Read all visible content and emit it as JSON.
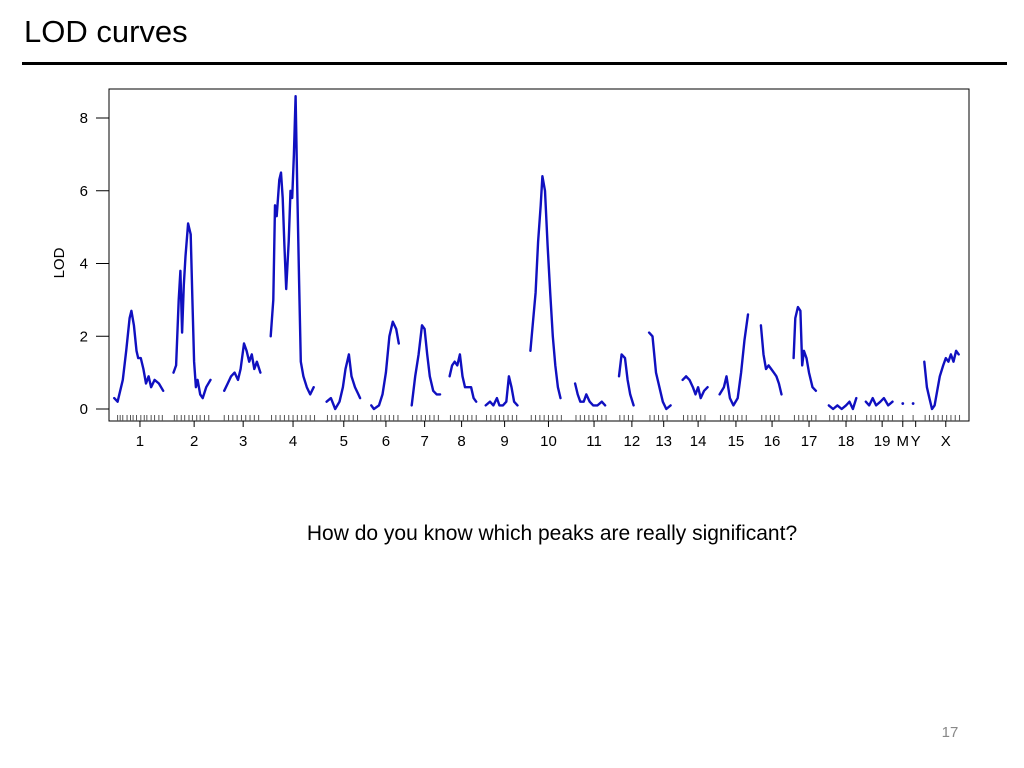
{
  "slide": {
    "title": "LOD curves",
    "question": "How do you know which peaks are really significant?",
    "page_number": "17"
  },
  "colors": {
    "curve": "#1010c0",
    "axis": "#000000"
  },
  "chart_data": {
    "type": "line",
    "title": "",
    "xlabel": "",
    "ylabel": "LOD",
    "ylim": [
      0,
      8.5
    ],
    "xlim": [
      0,
      100
    ],
    "y_ticks": [
      0,
      2,
      4,
      6,
      8
    ],
    "x_tick_labels": [
      {
        "label": "1",
        "x": 3.6
      },
      {
        "label": "2",
        "x": 9.9
      },
      {
        "label": "3",
        "x": 15.6
      },
      {
        "label": "4",
        "x": 21.4
      },
      {
        "label": "5",
        "x": 27.3
      },
      {
        "label": "6",
        "x": 32.2
      },
      {
        "label": "7",
        "x": 36.7
      },
      {
        "label": "8",
        "x": 41.0
      },
      {
        "label": "9",
        "x": 46.0
      },
      {
        "label": "10",
        "x": 51.1
      },
      {
        "label": "11",
        "x": 56.4
      },
      {
        "label": "12",
        "x": 60.8
      },
      {
        "label": "13",
        "x": 64.5
      },
      {
        "label": "14",
        "x": 68.5
      },
      {
        "label": "15",
        "x": 72.9
      },
      {
        "label": "16",
        "x": 77.1
      },
      {
        "label": "17",
        "x": 81.4
      },
      {
        "label": "18",
        "x": 85.7
      },
      {
        "label": "19",
        "x": 89.9
      },
      {
        "label": "M",
        "x": 92.3
      },
      {
        "label": "Y",
        "x": 93.8
      },
      {
        "label": "X",
        "x": 97.3
      }
    ],
    "series": [
      {
        "chromosome": "1",
        "points": [
          [
            0.6,
            0.3
          ],
          [
            1.0,
            0.2
          ],
          [
            1.6,
            0.8
          ],
          [
            2.0,
            1.6
          ],
          [
            2.4,
            2.5
          ],
          [
            2.6,
            2.7
          ],
          [
            2.9,
            2.3
          ],
          [
            3.2,
            1.6
          ],
          [
            3.4,
            1.4
          ],
          [
            3.7,
            1.4
          ],
          [
            4.0,
            1.1
          ],
          [
            4.3,
            0.7
          ],
          [
            4.6,
            0.9
          ],
          [
            4.9,
            0.6
          ],
          [
            5.3,
            0.8
          ],
          [
            5.8,
            0.7
          ],
          [
            6.3,
            0.5
          ]
        ]
      },
      {
        "chromosome": "2",
        "points": [
          [
            7.5,
            1.0
          ],
          [
            7.8,
            1.2
          ],
          [
            8.1,
            3.0
          ],
          [
            8.3,
            3.8
          ],
          [
            8.5,
            2.1
          ],
          [
            8.7,
            3.4
          ],
          [
            8.9,
            4.2
          ],
          [
            9.2,
            5.1
          ],
          [
            9.5,
            4.8
          ],
          [
            9.7,
            3.0
          ],
          [
            9.9,
            1.3
          ],
          [
            10.1,
            0.6
          ],
          [
            10.3,
            0.8
          ],
          [
            10.6,
            0.4
          ],
          [
            10.9,
            0.3
          ],
          [
            11.3,
            0.6
          ],
          [
            11.8,
            0.8
          ]
        ]
      },
      {
        "chromosome": "3",
        "points": [
          [
            13.4,
            0.5
          ],
          [
            13.8,
            0.7
          ],
          [
            14.2,
            0.9
          ],
          [
            14.6,
            1.0
          ],
          [
            15.0,
            0.8
          ],
          [
            15.3,
            1.1
          ],
          [
            15.7,
            1.8
          ],
          [
            16.0,
            1.6
          ],
          [
            16.3,
            1.3
          ],
          [
            16.6,
            1.5
          ],
          [
            16.9,
            1.1
          ],
          [
            17.2,
            1.3
          ],
          [
            17.6,
            1.0
          ]
        ]
      },
      {
        "chromosome": "4",
        "points": [
          [
            18.8,
            2.0
          ],
          [
            19.1,
            3.0
          ],
          [
            19.3,
            5.6
          ],
          [
            19.5,
            5.3
          ],
          [
            19.8,
            6.3
          ],
          [
            20.0,
            6.5
          ],
          [
            20.2,
            5.8
          ],
          [
            20.4,
            4.5
          ],
          [
            20.6,
            3.3
          ],
          [
            20.9,
            4.6
          ],
          [
            21.1,
            6.0
          ],
          [
            21.3,
            5.8
          ],
          [
            21.5,
            7.0
          ],
          [
            21.7,
            8.6
          ],
          [
            21.9,
            6.0
          ],
          [
            22.1,
            3.5
          ],
          [
            22.3,
            1.3
          ],
          [
            22.6,
            0.9
          ],
          [
            23.0,
            0.6
          ],
          [
            23.4,
            0.4
          ],
          [
            23.8,
            0.6
          ]
        ]
      },
      {
        "chromosome": "5",
        "points": [
          [
            25.3,
            0.2
          ],
          [
            25.8,
            0.3
          ],
          [
            26.3,
            0.0
          ],
          [
            26.8,
            0.2
          ],
          [
            27.2,
            0.6
          ],
          [
            27.5,
            1.1
          ],
          [
            27.9,
            1.5
          ],
          [
            28.2,
            0.9
          ],
          [
            28.6,
            0.6
          ],
          [
            29.0,
            0.4
          ],
          [
            29.2,
            0.3
          ]
        ]
      },
      {
        "chromosome": "6",
        "points": [
          [
            30.5,
            0.1
          ],
          [
            30.8,
            0.0
          ],
          [
            31.4,
            0.1
          ],
          [
            31.8,
            0.4
          ],
          [
            32.2,
            1.0
          ],
          [
            32.6,
            2.0
          ],
          [
            33.0,
            2.4
          ],
          [
            33.4,
            2.2
          ],
          [
            33.7,
            1.8
          ]
        ]
      },
      {
        "chromosome": "7",
        "points": [
          [
            35.2,
            0.1
          ],
          [
            35.6,
            0.9
          ],
          [
            36.0,
            1.5
          ],
          [
            36.4,
            2.3
          ],
          [
            36.7,
            2.2
          ],
          [
            37.0,
            1.5
          ],
          [
            37.3,
            0.9
          ],
          [
            37.7,
            0.5
          ],
          [
            38.1,
            0.4
          ],
          [
            38.5,
            0.4
          ]
        ]
      },
      {
        "chromosome": "8",
        "points": [
          [
            39.6,
            0.9
          ],
          [
            39.9,
            1.2
          ],
          [
            40.2,
            1.3
          ],
          [
            40.5,
            1.2
          ],
          [
            40.8,
            1.5
          ],
          [
            41.1,
            0.9
          ],
          [
            41.4,
            0.6
          ],
          [
            41.8,
            0.6
          ],
          [
            42.1,
            0.6
          ],
          [
            42.4,
            0.3
          ],
          [
            42.7,
            0.2
          ]
        ]
      },
      {
        "chromosome": "9",
        "points": [
          [
            43.8,
            0.1
          ],
          [
            44.3,
            0.2
          ],
          [
            44.7,
            0.1
          ],
          [
            45.1,
            0.3
          ],
          [
            45.4,
            0.1
          ],
          [
            45.8,
            0.1
          ],
          [
            46.2,
            0.2
          ],
          [
            46.5,
            0.9
          ],
          [
            46.8,
            0.6
          ],
          [
            47.1,
            0.2
          ],
          [
            47.5,
            0.1
          ]
        ]
      },
      {
        "chromosome": "10",
        "points": [
          [
            49.0,
            1.6
          ],
          [
            49.3,
            2.4
          ],
          [
            49.6,
            3.2
          ],
          [
            49.9,
            4.6
          ],
          [
            50.2,
            5.6
          ],
          [
            50.4,
            6.4
          ],
          [
            50.7,
            6.0
          ],
          [
            51.0,
            4.5
          ],
          [
            51.3,
            3.2
          ],
          [
            51.6,
            2.0
          ],
          [
            51.9,
            1.2
          ],
          [
            52.2,
            0.6
          ],
          [
            52.5,
            0.3
          ]
        ]
      },
      {
        "chromosome": "11",
        "points": [
          [
            54.2,
            0.7
          ],
          [
            54.5,
            0.4
          ],
          [
            54.8,
            0.2
          ],
          [
            55.2,
            0.2
          ],
          [
            55.5,
            0.4
          ],
          [
            55.9,
            0.2
          ],
          [
            56.3,
            0.1
          ],
          [
            56.8,
            0.1
          ],
          [
            57.3,
            0.2
          ],
          [
            57.7,
            0.1
          ]
        ]
      },
      {
        "chromosome": "12",
        "points": [
          [
            59.3,
            0.9
          ],
          [
            59.6,
            1.5
          ],
          [
            60.0,
            1.4
          ],
          [
            60.3,
            0.8
          ],
          [
            60.6,
            0.4
          ],
          [
            61.0,
            0.1
          ]
        ]
      },
      {
        "chromosome": "13",
        "points": [
          [
            62.8,
            2.1
          ],
          [
            63.2,
            2.0
          ],
          [
            63.6,
            1.0
          ],
          [
            64.0,
            0.6
          ],
          [
            64.4,
            0.2
          ],
          [
            64.8,
            0.0
          ],
          [
            65.3,
            0.1
          ]
        ]
      },
      {
        "chromosome": "14",
        "points": [
          [
            66.7,
            0.8
          ],
          [
            67.1,
            0.9
          ],
          [
            67.5,
            0.8
          ],
          [
            67.9,
            0.6
          ],
          [
            68.2,
            0.4
          ],
          [
            68.5,
            0.6
          ],
          [
            68.8,
            0.3
          ],
          [
            69.2,
            0.5
          ],
          [
            69.6,
            0.6
          ]
        ]
      },
      {
        "chromosome": "15",
        "points": [
          [
            71.0,
            0.4
          ],
          [
            71.5,
            0.6
          ],
          [
            71.8,
            0.9
          ],
          [
            72.2,
            0.3
          ],
          [
            72.6,
            0.1
          ],
          [
            73.1,
            0.3
          ],
          [
            73.5,
            1.0
          ],
          [
            73.9,
            1.9
          ],
          [
            74.3,
            2.6
          ]
        ]
      },
      {
        "chromosome": "16",
        "points": [
          [
            75.8,
            2.3
          ],
          [
            76.1,
            1.5
          ],
          [
            76.4,
            1.1
          ],
          [
            76.7,
            1.2
          ],
          [
            77.0,
            1.1
          ],
          [
            77.3,
            1.0
          ],
          [
            77.6,
            0.9
          ],
          [
            77.9,
            0.7
          ],
          [
            78.2,
            0.4
          ]
        ]
      },
      {
        "chromosome": "17",
        "points": [
          [
            79.6,
            1.4
          ],
          [
            79.8,
            2.5
          ],
          [
            80.1,
            2.8
          ],
          [
            80.4,
            2.7
          ],
          [
            80.6,
            1.2
          ],
          [
            80.8,
            1.6
          ],
          [
            81.1,
            1.4
          ],
          [
            81.4,
            1.0
          ],
          [
            81.8,
            0.6
          ],
          [
            82.2,
            0.5
          ]
        ]
      },
      {
        "chromosome": "18",
        "points": [
          [
            83.7,
            0.1
          ],
          [
            84.2,
            0.0
          ],
          [
            84.7,
            0.1
          ],
          [
            85.2,
            0.0
          ],
          [
            85.7,
            0.1
          ],
          [
            86.1,
            0.2
          ],
          [
            86.5,
            0.0
          ],
          [
            86.9,
            0.3
          ]
        ]
      },
      {
        "chromosome": "19",
        "points": [
          [
            88.0,
            0.2
          ],
          [
            88.4,
            0.1
          ],
          [
            88.8,
            0.3
          ],
          [
            89.2,
            0.1
          ],
          [
            89.7,
            0.2
          ],
          [
            90.1,
            0.3
          ],
          [
            90.6,
            0.1
          ],
          [
            91.1,
            0.2
          ]
        ]
      },
      {
        "chromosome": "M",
        "points": [
          [
            92.3,
            0.15
          ]
        ]
      },
      {
        "chromosome": "Y",
        "points": [
          [
            93.5,
            0.15
          ]
        ]
      },
      {
        "chromosome": "X",
        "points": [
          [
            94.8,
            1.3
          ],
          [
            95.1,
            0.6
          ],
          [
            95.4,
            0.3
          ],
          [
            95.7,
            0.0
          ],
          [
            96.0,
            0.1
          ],
          [
            96.3,
            0.5
          ],
          [
            96.6,
            0.9
          ],
          [
            97.0,
            1.2
          ],
          [
            97.3,
            1.4
          ],
          [
            97.6,
            1.3
          ],
          [
            97.9,
            1.5
          ],
          [
            98.2,
            1.3
          ],
          [
            98.5,
            1.6
          ],
          [
            98.8,
            1.5
          ]
        ]
      }
    ],
    "marker_rug": [
      1,
      1.3,
      1.6,
      2.1,
      2.5,
      2.8,
      3.2,
      3.7,
      4.1,
      4.4,
      4.9,
      5.3,
      5.8,
      6.2,
      7.6,
      7.9,
      8.4,
      8.8,
      9.3,
      9.7,
      10.2,
      10.6,
      11.1,
      11.6,
      13.4,
      13.9,
      14.4,
      14.9,
      15.4,
      15.9,
      16.4,
      16.9,
      17.4,
      18.9,
      19.4,
      19.9,
      20.4,
      20.9,
      21.4,
      21.9,
      22.4,
      22.9,
      23.4,
      23.9,
      25.4,
      25.9,
      26.4,
      26.9,
      27.4,
      27.9,
      28.4,
      28.9,
      30.6,
      31.1,
      31.6,
      32.1,
      32.6,
      33.1,
      33.6,
      35.3,
      35.8,
      36.3,
      36.8,
      37.3,
      37.8,
      38.3,
      39.7,
      40.2,
      40.7,
      41.2,
      41.7,
      42.2,
      42.7,
      43.9,
      44.4,
      44.9,
      45.4,
      45.9,
      46.4,
      46.9,
      47.4,
      49.1,
      49.6,
      50.1,
      50.6,
      51.1,
      51.6,
      52.1,
      52.6,
      54.3,
      54.8,
      55.3,
      55.8,
      56.3,
      56.8,
      57.3,
      57.8,
      59.4,
      59.9,
      60.4,
      60.9,
      62.9,
      63.4,
      63.9,
      64.4,
      64.9,
      66.8,
      67.3,
      67.8,
      68.3,
      68.8,
      69.3,
      71.1,
      71.6,
      72.1,
      72.6,
      73.1,
      73.6,
      74.1,
      75.9,
      76.4,
      76.9,
      77.4,
      77.9,
      79.7,
      80.2,
      80.7,
      81.2,
      81.7,
      82.2,
      83.8,
      84.3,
      84.8,
      85.3,
      85.8,
      86.3,
      86.8,
      88.1,
      88.6,
      89.1,
      89.6,
      90.1,
      90.6,
      91.1,
      92.3,
      93.5,
      94.9,
      95.4,
      95.9,
      96.4,
      96.9,
      97.4,
      97.9,
      98.4,
      98.9
    ]
  }
}
